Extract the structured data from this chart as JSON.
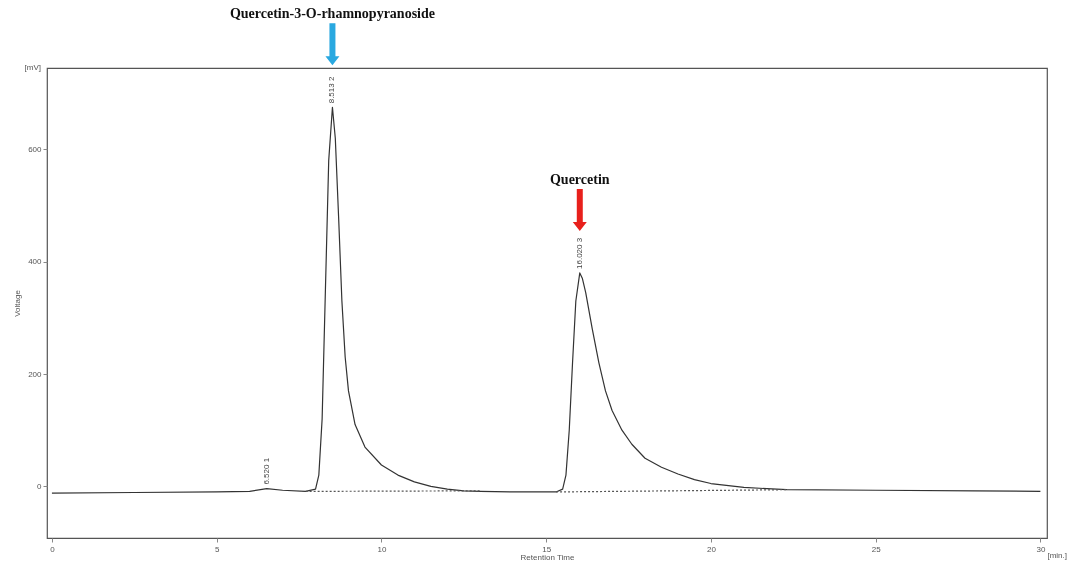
{
  "chart_data": {
    "type": "line",
    "xlabel": "Retention Time",
    "ylabel": "Voltage",
    "xlim": [
      -0.15,
      30.2
    ],
    "ylim": [
      -92,
      745
    ],
    "xticks": [
      0,
      5,
      10,
      15,
      20,
      25,
      30
    ],
    "yticks": [
      0,
      200,
      400,
      600
    ],
    "grid": false,
    "series": [
      {
        "color": "#333333",
        "x": [
          0,
          2.5,
          5,
          6,
          6.52,
          7,
          7.7,
          8,
          8.1,
          8.2,
          8.3,
          8.4,
          8.513,
          8.6,
          8.7,
          8.8,
          8.9,
          9,
          9.2,
          9.5,
          10,
          10.5,
          11,
          11.5,
          12,
          12.5,
          13,
          14,
          15,
          15.3,
          15.5,
          15.6,
          15.7,
          15.8,
          15.9,
          16.02,
          16.1,
          16.2,
          16.4,
          16.6,
          16.8,
          17,
          17.3,
          17.6,
          18,
          18.5,
          19,
          19.5,
          20,
          21,
          22,
          22.3,
          25,
          28,
          30
        ],
        "values": [
          -12,
          -11,
          -10,
          -9,
          -4,
          -7,
          -9,
          -5,
          20,
          120,
          350,
          580,
          675,
          620,
          480,
          330,
          230,
          170,
          110,
          70,
          38,
          20,
          8,
          0,
          -5,
          -8,
          -9,
          -10,
          -10,
          -10,
          -5,
          20,
          100,
          220,
          330,
          380,
          370,
          345,
          280,
          220,
          170,
          135,
          100,
          75,
          50,
          34,
          22,
          12,
          5,
          -2,
          -5,
          -6,
          -7,
          -8,
          -9
        ]
      },
      {
        "color": "#555555",
        "line_style": "dotted",
        "x": [
          7.7,
          13,
          14,
          15.3,
          22.3
        ],
        "values": [
          -9,
          -8,
          null,
          -10,
          -6
        ]
      }
    ],
    "annotations": [
      "[mV]",
      "[min.]",
      "Quercetin-3-O-rhamnopyranoside",
      "Quercetin",
      {
        "text": "8.513  2",
        "x": 8.513,
        "y": 675
      },
      {
        "text": "16.020  3",
        "x": 16.02,
        "y": 380
      },
      {
        "text": "6.520  1",
        "x": 6.52,
        "y": -4
      }
    ]
  }
}
